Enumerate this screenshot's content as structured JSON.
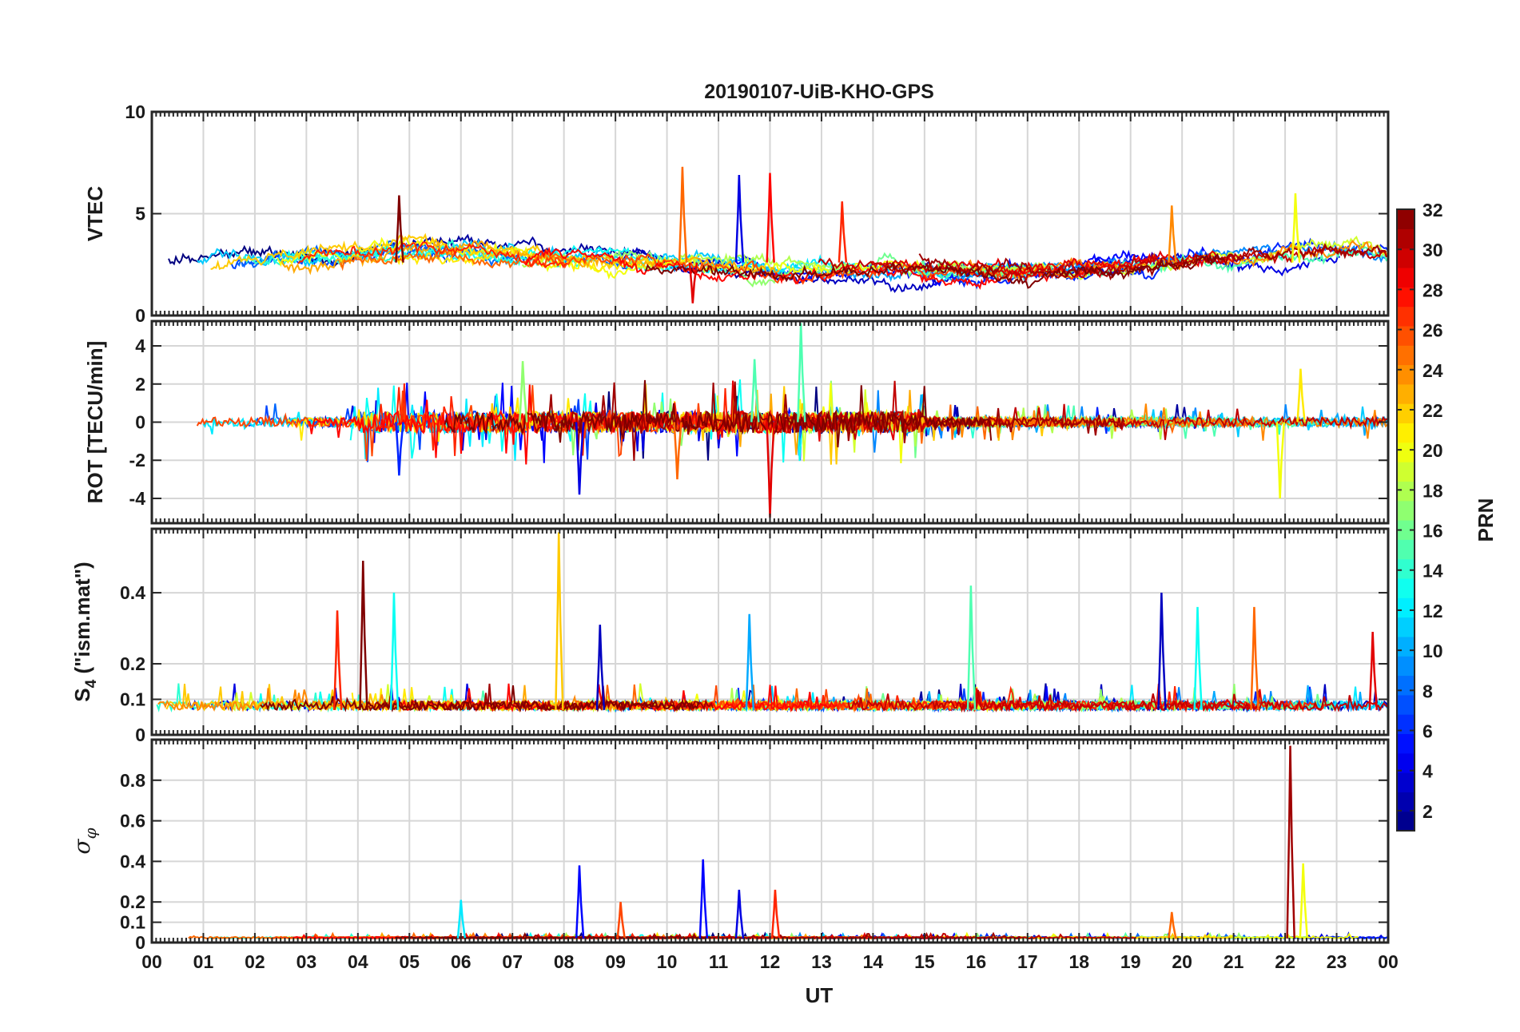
{
  "chart_data": {
    "type": "line",
    "title": "20190107-UiB-KHO-GPS",
    "xlabel": "UT",
    "x_range_hours": [
      0,
      24
    ],
    "x_tick_labels": [
      "00",
      "01",
      "02",
      "03",
      "04",
      "05",
      "06",
      "07",
      "08",
      "09",
      "10",
      "11",
      "12",
      "13",
      "14",
      "15",
      "16",
      "17",
      "18",
      "19",
      "20",
      "21",
      "22",
      "23",
      "00"
    ],
    "grid": true,
    "colormap": "jet",
    "colorbar": {
      "label": "PRN",
      "range": [
        1,
        32
      ],
      "tick_values": [
        2,
        4,
        6,
        8,
        10,
        12,
        14,
        16,
        18,
        20,
        22,
        24,
        26,
        28,
        30,
        32
      ],
      "tick_labels": [
        "2",
        "4",
        "6",
        "8",
        "10",
        "12",
        "14",
        "16",
        "18",
        "20",
        "22",
        "24",
        "26",
        "28",
        "30",
        "32"
      ]
    },
    "series_note_count": 32,
    "panels": [
      {
        "key": "vtec",
        "ylabel": "VTEC",
        "ylim": [
          0,
          10
        ],
        "yticks": [
          0,
          5,
          10
        ],
        "ytick_labels": [
          "0",
          "5",
          "10"
        ],
        "baseline": 2.6,
        "spread": 0.9,
        "spikes": [
          {
            "t": 4.8,
            "v": 5.9,
            "prn": 32
          },
          {
            "t": 10.3,
            "v": 7.3,
            "prn": 25
          },
          {
            "t": 11.4,
            "v": 6.9,
            "prn": 4
          },
          {
            "t": 12.0,
            "v": 7.0,
            "prn": 28
          },
          {
            "t": 13.4,
            "v": 5.6,
            "prn": 27
          },
          {
            "t": 19.8,
            "v": 5.4,
            "prn": 24
          },
          {
            "t": 22.2,
            "v": 6.0,
            "prn": 20
          },
          {
            "t": 10.5,
            "v": 0.6,
            "prn": 29
          }
        ]
      },
      {
        "key": "rot",
        "ylabel": "ROT [TECU/min]",
        "ylim": [
          -5.3,
          5.3
        ],
        "yticks": [
          -4,
          -2,
          0,
          2,
          4
        ],
        "ytick_labels": [
          "-4",
          "-2",
          "0",
          "2",
          "4"
        ],
        "baseline": 0,
        "spread": 0.35,
        "spikes": [
          {
            "t": 4.8,
            "v": -2.8,
            "prn": 6
          },
          {
            "t": 8.3,
            "v": -3.8,
            "prn": 4
          },
          {
            "t": 10.2,
            "v": -3.0,
            "prn": 25
          },
          {
            "t": 12.0,
            "v": -5.0,
            "prn": 29
          },
          {
            "t": 12.6,
            "v": 5.2,
            "prn": 15
          },
          {
            "t": 21.9,
            "v": -4.0,
            "prn": 20
          },
          {
            "t": 22.3,
            "v": 2.8,
            "prn": 21
          },
          {
            "t": 7.2,
            "v": 3.2,
            "prn": 17
          },
          {
            "t": 11.7,
            "v": 3.3,
            "prn": 15
          }
        ]
      },
      {
        "key": "s4",
        "ylabel_main": "S",
        "ylabel_sub": "4",
        "ylabel_rest": " (\"ism.mat\")",
        "ylim": [
          0,
          0.58
        ],
        "yticks": [
          0,
          0.1,
          0.2,
          0.4
        ],
        "ytick_labels": [
          "0",
          "0.1",
          "0.2",
          "0.4"
        ],
        "baseline": 0.07,
        "spread": 0.025,
        "spikes": [
          {
            "t": 4.1,
            "v": 0.49,
            "prn": 32
          },
          {
            "t": 3.6,
            "v": 0.35,
            "prn": 27
          },
          {
            "t": 4.7,
            "v": 0.4,
            "prn": 13
          },
          {
            "t": 7.9,
            "v": 0.57,
            "prn": 22
          },
          {
            "t": 8.7,
            "v": 0.31,
            "prn": 3
          },
          {
            "t": 11.6,
            "v": 0.34,
            "prn": 10
          },
          {
            "t": 15.9,
            "v": 0.42,
            "prn": 15
          },
          {
            "t": 19.6,
            "v": 0.4,
            "prn": 3
          },
          {
            "t": 20.3,
            "v": 0.36,
            "prn": 13
          },
          {
            "t": 21.4,
            "v": 0.36,
            "prn": 25
          },
          {
            "t": 23.7,
            "v": 0.29,
            "prn": 29
          }
        ]
      },
      {
        "key": "sigma",
        "ylabel_symbol": "σ",
        "ylabel_sub": "φ",
        "ylim": [
          0,
          1.0
        ],
        "yticks": [
          0,
          0.1,
          0.2,
          0.4,
          0.6,
          0.8
        ],
        "ytick_labels": [
          "0",
          "0.1",
          "0.2",
          "0.4",
          "0.6",
          "0.8"
        ],
        "baseline": 0.02,
        "spread": 0.008,
        "spikes": [
          {
            "t": 8.3,
            "v": 0.38,
            "prn": 5
          },
          {
            "t": 9.1,
            "v": 0.2,
            "prn": 26
          },
          {
            "t": 10.7,
            "v": 0.41,
            "prn": 5
          },
          {
            "t": 11.4,
            "v": 0.26,
            "prn": 4
          },
          {
            "t": 12.1,
            "v": 0.26,
            "prn": 27
          },
          {
            "t": 6.0,
            "v": 0.21,
            "prn": 12
          },
          {
            "t": 22.1,
            "v": 0.97,
            "prn": 31
          },
          {
            "t": 22.35,
            "v": 0.39,
            "prn": 20
          },
          {
            "t": 19.8,
            "v": 0.15,
            "prn": 25
          }
        ]
      }
    ]
  }
}
